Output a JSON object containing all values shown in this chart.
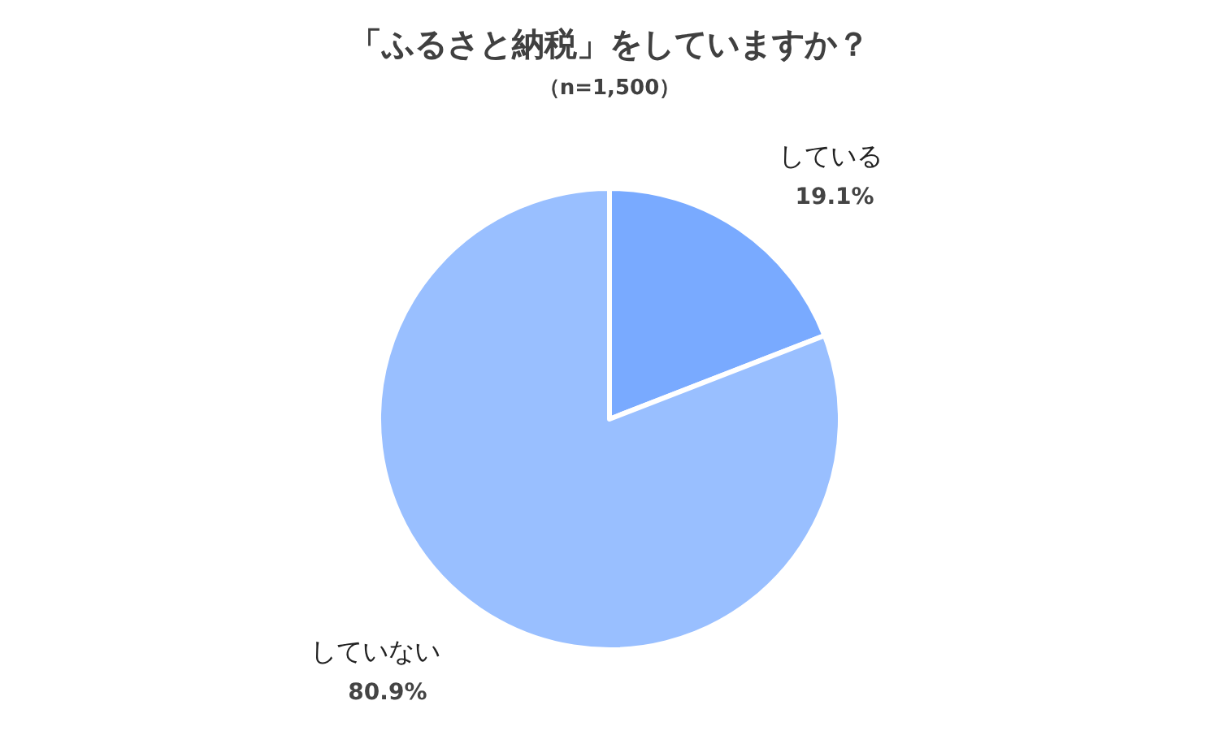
{
  "chart_data": {
    "type": "pie",
    "title": "「ふるさと納税」をしていますか？",
    "subtitle": "（n=1,500）",
    "categories": [
      "している",
      "していない"
    ],
    "values": [
      19.1,
      80.9
    ],
    "value_labels": [
      "19.1%",
      "80.9%"
    ],
    "colors": [
      "#79aaff",
      "#99bfff"
    ]
  }
}
